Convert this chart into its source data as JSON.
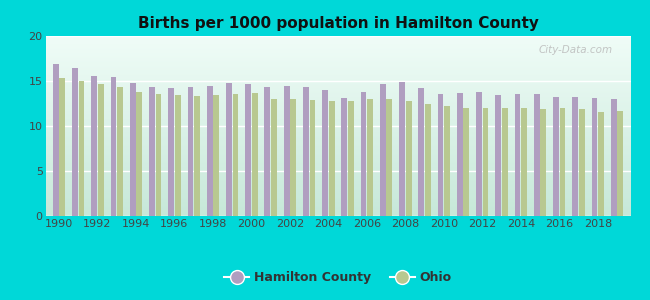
{
  "title": "Births per 1000 population in Hamilton County",
  "background_color": "#00d8d8",
  "plot_bg_top": "#f0faf8",
  "plot_bg_bottom": "#c8e8d8",
  "years": [
    1990,
    1991,
    1992,
    1993,
    1994,
    1995,
    1996,
    1997,
    1998,
    1999,
    2000,
    2001,
    2002,
    2003,
    2004,
    2005,
    2006,
    2007,
    2008,
    2009,
    2010,
    2011,
    2012,
    2013,
    2014,
    2015,
    2016,
    2017,
    2018,
    2019
  ],
  "hamilton": [
    16.9,
    16.5,
    15.6,
    15.5,
    14.8,
    14.3,
    14.2,
    14.3,
    14.4,
    14.8,
    14.7,
    14.3,
    14.4,
    14.3,
    14.0,
    13.1,
    13.8,
    14.7,
    14.9,
    14.2,
    13.6,
    13.7,
    13.8,
    13.5,
    13.6,
    13.6,
    13.2,
    13.2,
    13.1,
    13.0
  ],
  "ohio": [
    15.3,
    15.0,
    14.7,
    14.3,
    13.8,
    13.6,
    13.5,
    13.3,
    13.5,
    13.6,
    13.7,
    13.0,
    13.0,
    12.9,
    12.8,
    12.8,
    13.0,
    13.0,
    12.8,
    12.5,
    12.2,
    12.0,
    12.0,
    12.0,
    12.0,
    11.9,
    12.0,
    11.9,
    11.6,
    11.7
  ],
  "hamilton_color": "#b09ec0",
  "ohio_color": "#b8c890",
  "ylim": [
    0,
    20
  ],
  "yticks": [
    0,
    5,
    10,
    15,
    20
  ],
  "bar_width": 0.3,
  "legend_hamilton": "Hamilton County",
  "legend_ohio": "Ohio",
  "watermark": "City-Data.com"
}
